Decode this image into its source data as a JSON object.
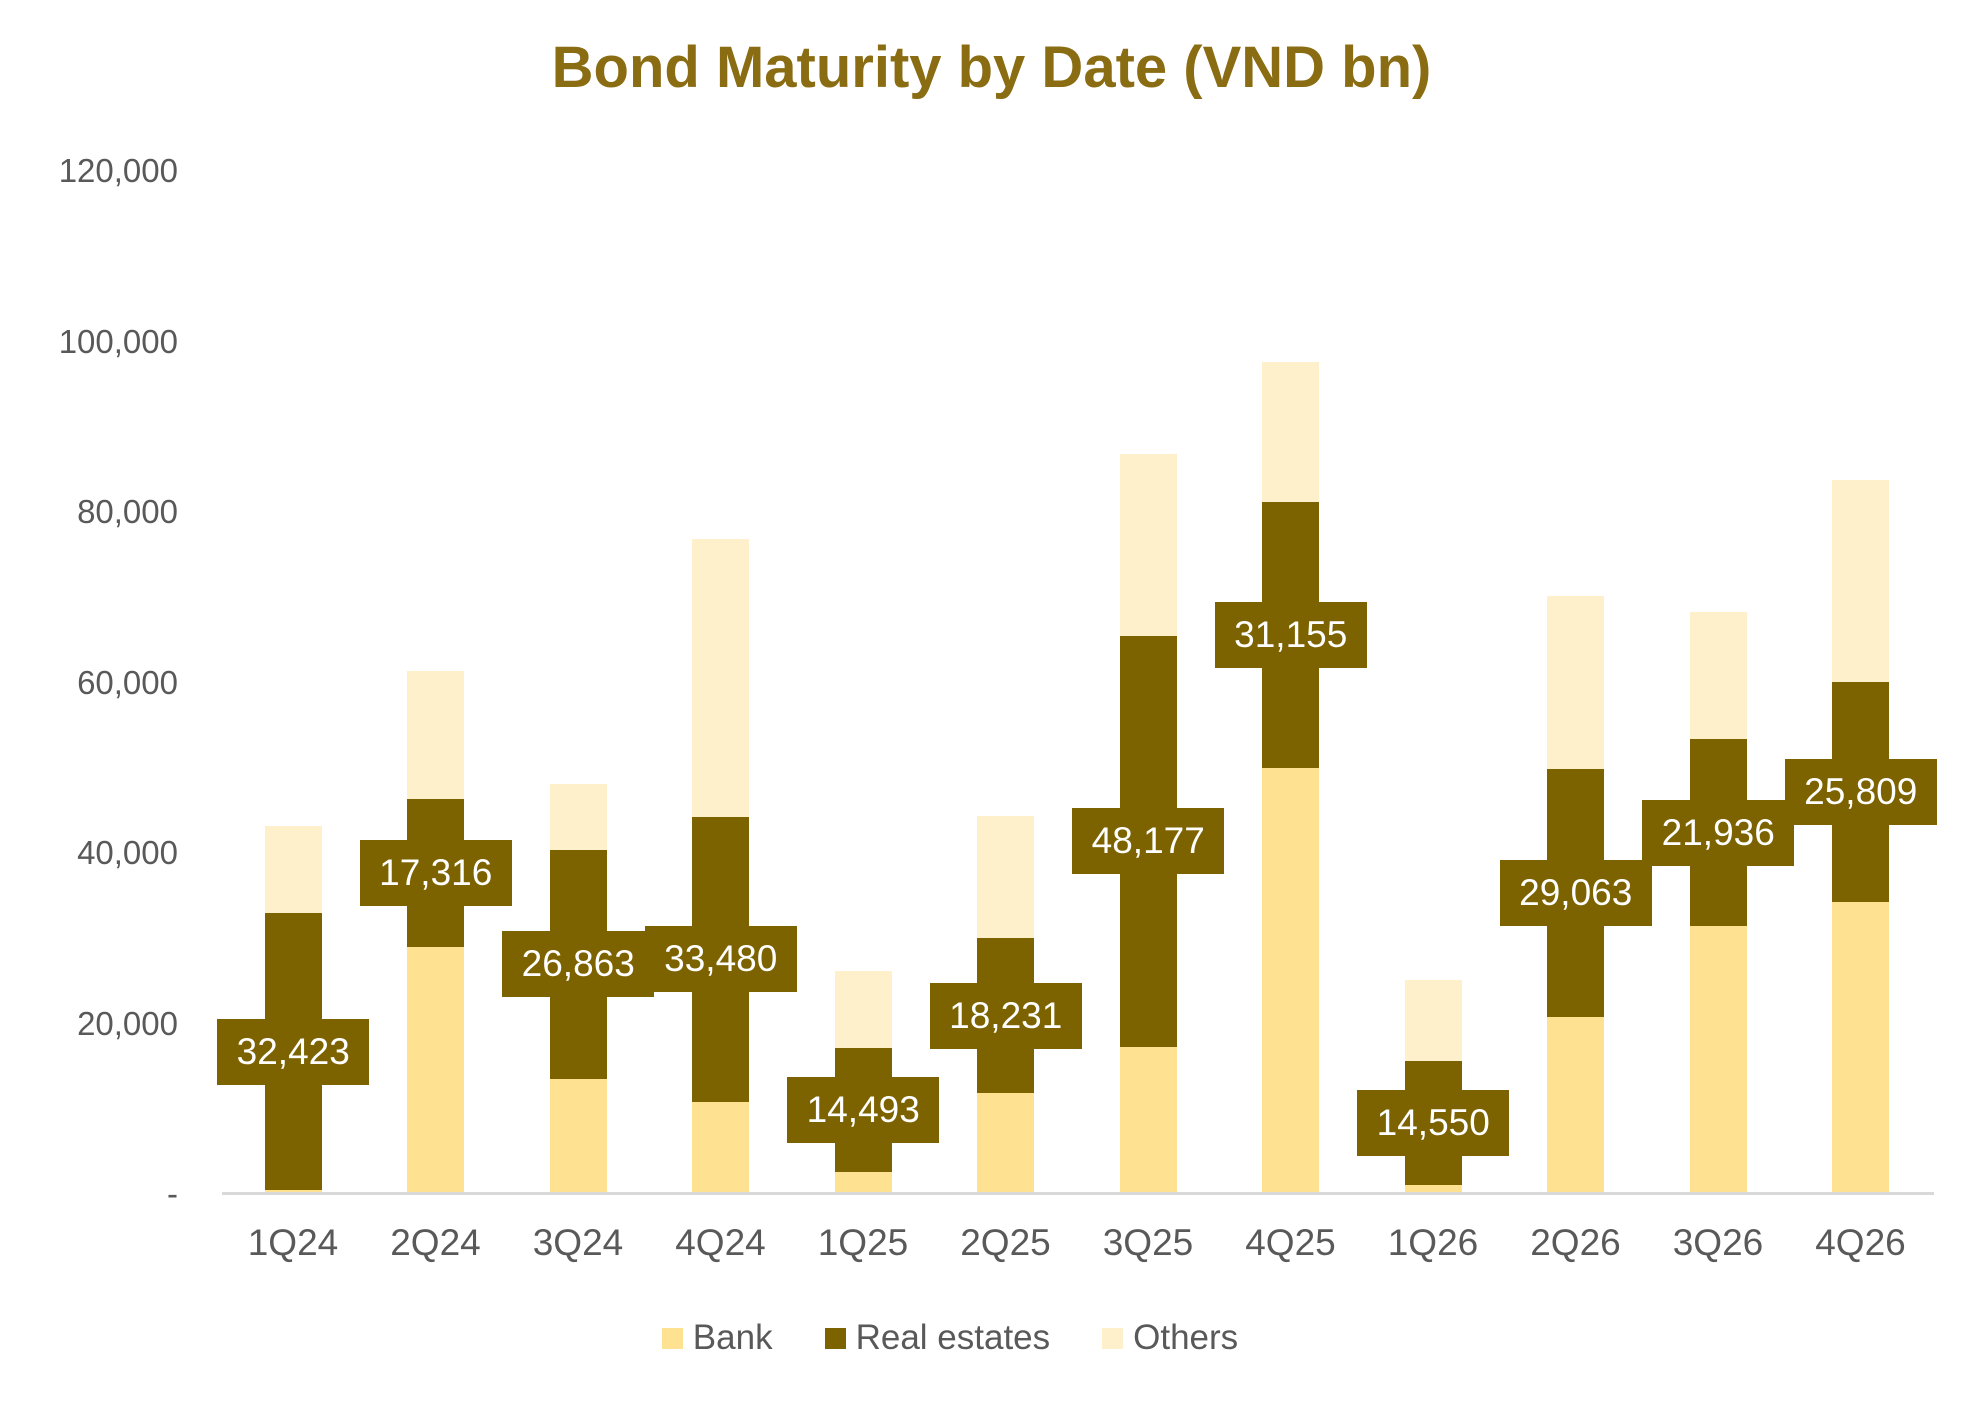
{
  "title": "Bond Maturity by Date (VND bn)",
  "colors": {
    "bank": "#ffe192",
    "real_estates": "#7d6300",
    "others": "#fdf0ca",
    "title_text": "#8a6c13",
    "axis_text": "#595959",
    "axis_line": "#d9d9d9",
    "label_text": "#ffffff"
  },
  "legend": [
    {
      "label": "Bank",
      "color": "#ffe192"
    },
    {
      "label": "Real estates",
      "color": "#7d6300"
    },
    {
      "label": "Others",
      "color": "#fdf0ca"
    }
  ],
  "y_axis": {
    "ticks": [
      {
        "label": "120,000",
        "value": 120000
      },
      {
        "label": "100,000",
        "value": 100000
      },
      {
        "label": "80,000",
        "value": 80000
      },
      {
        "label": "60,000",
        "value": 60000
      },
      {
        "label": "40,000",
        "value": 40000
      },
      {
        "label": "20,000",
        "value": 20000
      },
      {
        "label": "-",
        "value": 0
      }
    ]
  },
  "chart_data": {
    "type": "bar",
    "stacked": true,
    "title": "Bond Maturity by Date (VND bn)",
    "xlabel": "",
    "ylabel": "",
    "ylim": [
      0,
      120000
    ],
    "grid": false,
    "legend_position": "bottom",
    "categories": [
      "1Q24",
      "2Q24",
      "3Q24",
      "4Q24",
      "1Q25",
      "2Q25",
      "3Q25",
      "4Q25",
      "1Q26",
      "2Q26",
      "3Q26",
      "4Q26"
    ],
    "series": [
      {
        "name": "Bank",
        "values": [
          500,
          29000,
          13500,
          10800,
          2600,
          11800,
          17300,
          50000,
          1000,
          20800,
          31400,
          34300
        ]
      },
      {
        "name": "Real estates",
        "values": [
          32423,
          17316,
          26863,
          33480,
          14493,
          18231,
          48177,
          31155,
          14550,
          29063,
          21936,
          25809
        ]
      },
      {
        "name": "Others",
        "values": [
          10300,
          15000,
          7700,
          32500,
          9100,
          14300,
          21300,
          16500,
          9500,
          20300,
          14900,
          23700
        ]
      }
    ],
    "data_labels": {
      "series": "Real estates",
      "values": [
        "32,423",
        "17,316",
        "26,863",
        "33,480",
        "14,493",
        "18,231",
        "48,177",
        "31,155",
        "14,550",
        "29,063",
        "21,936",
        "25,809"
      ]
    }
  }
}
